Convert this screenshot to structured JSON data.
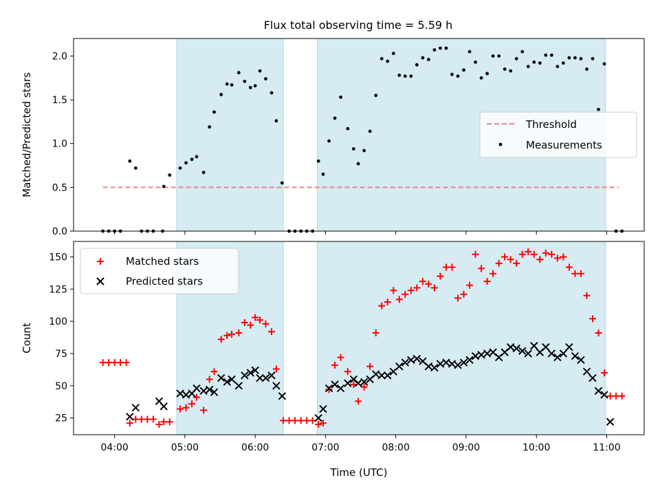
{
  "title": "Flux total observing time = 5.59 h",
  "colors": {
    "shade": "#add8e6",
    "threshold": "#f08080",
    "measurement": "#000000",
    "matched": "#ff0000",
    "predicted": "#000000"
  },
  "chart_data": [
    {
      "type": "scatter",
      "ylabel": "Matched/Predicted stars",
      "ylim": [
        0,
        2.2
      ],
      "yticks": [
        "0.0",
        "0.5",
        "1.0",
        "1.5",
        "2.0"
      ],
      "threshold": {
        "value": 0.5,
        "x_range": [
          "03:50",
          "11:10"
        ]
      },
      "observing_windows": [
        [
          "04:53",
          "06:24"
        ],
        [
          "06:53",
          "10:59"
        ]
      ],
      "legend": {
        "placement": "center-right",
        "items": [
          "Threshold",
          "Measurements"
        ]
      },
      "series": [
        {
          "name": "Measurements",
          "points": [
            [
              "03:50",
              0.0
            ],
            [
              "03:55",
              0.0
            ],
            [
              "04:00",
              0.0
            ],
            [
              "04:05",
              0.0
            ],
            [
              "04:13",
              0.8
            ],
            [
              "04:18",
              0.72
            ],
            [
              "04:23",
              0.0
            ],
            [
              "04:28",
              0.0
            ],
            [
              "04:33",
              0.0
            ],
            [
              "04:41",
              0.0
            ],
            [
              "04:42",
              0.51
            ],
            [
              "04:47",
              0.64
            ],
            [
              "04:56",
              0.72
            ],
            [
              "05:01",
              0.78
            ],
            [
              "05:06",
              0.82
            ],
            [
              "05:10",
              0.85
            ],
            [
              "05:16",
              0.67
            ],
            [
              "05:21",
              1.19
            ],
            [
              "05:25",
              1.36
            ],
            [
              "05:31",
              1.56
            ],
            [
              "05:36",
              1.68
            ],
            [
              "05:40",
              1.67
            ],
            [
              "05:46",
              1.81
            ],
            [
              "05:51",
              1.71
            ],
            [
              "05:56",
              1.64
            ],
            [
              "06:00",
              1.66
            ],
            [
              "06:04",
              1.83
            ],
            [
              "06:09",
              1.74
            ],
            [
              "06:14",
              1.58
            ],
            [
              "06:18",
              1.26
            ],
            [
              "06:23",
              0.55
            ],
            [
              "06:29",
              0.0
            ],
            [
              "06:34",
              0.0
            ],
            [
              "06:39",
              0.0
            ],
            [
              "06:44",
              0.0
            ],
            [
              "06:49",
              0.0
            ],
            [
              "06:54",
              0.8
            ],
            [
              "06:58",
              0.65
            ],
            [
              "07:03",
              1.03
            ],
            [
              "07:08",
              1.29
            ],
            [
              "07:13",
              1.53
            ],
            [
              "07:19",
              1.17
            ],
            [
              "07:24",
              0.94
            ],
            [
              "07:28",
              0.77
            ],
            [
              "07:33",
              0.92
            ],
            [
              "07:38",
              1.14
            ],
            [
              "07:43",
              1.55
            ],
            [
              "07:48",
              1.97
            ],
            [
              "07:53",
              1.94
            ],
            [
              "07:58",
              2.03
            ],
            [
              "08:03",
              1.78
            ],
            [
              "08:08",
              1.77
            ],
            [
              "08:13",
              1.77
            ],
            [
              "08:18",
              1.9
            ],
            [
              "08:23",
              1.98
            ],
            [
              "08:28",
              1.96
            ],
            [
              "08:33",
              2.07
            ],
            [
              "08:38",
              2.09
            ],
            [
              "08:43",
              2.09
            ],
            [
              "08:48",
              1.79
            ],
            [
              "08:53",
              1.77
            ],
            [
              "08:58",
              1.84
            ],
            [
              "09:03",
              2.05
            ],
            [
              "09:08",
              1.93
            ],
            [
              "09:13",
              1.75
            ],
            [
              "09:18",
              1.8
            ],
            [
              "09:23",
              2.0
            ],
            [
              "09:28",
              2.0
            ],
            [
              "09:33",
              1.85
            ],
            [
              "09:38",
              1.83
            ],
            [
              "09:43",
              1.97
            ],
            [
              "09:48",
              2.05
            ],
            [
              "09:53",
              1.88
            ],
            [
              "09:58",
              1.93
            ],
            [
              "10:03",
              1.92
            ],
            [
              "10:08",
              2.01
            ],
            [
              "10:13",
              2.01
            ],
            [
              "10:18",
              1.88
            ],
            [
              "10:23",
              1.92
            ],
            [
              "10:28",
              1.98
            ],
            [
              "10:33",
              1.98
            ],
            [
              "10:38",
              1.97
            ],
            [
              "10:43",
              1.85
            ],
            [
              "10:48",
              1.97
            ],
            [
              "10:53",
              1.39
            ],
            [
              "10:58",
              1.91
            ],
            [
              "11:08",
              0.0
            ],
            [
              "11:13",
              0.0
            ]
          ]
        }
      ]
    },
    {
      "type": "scatter",
      "xlabel": "Time (UTC)",
      "ylabel": "Count",
      "ylim": [
        12,
        162
      ],
      "yticks": [
        "25",
        "50",
        "75",
        "100",
        "125",
        "150"
      ],
      "xticks": [
        "04:00",
        "05:00",
        "06:00",
        "07:00",
        "08:00",
        "09:00",
        "10:00",
        "11:00"
      ],
      "xlim": [
        "03:25",
        "11:32"
      ],
      "observing_windows": [
        [
          "04:53",
          "06:24"
        ],
        [
          "06:53",
          "10:59"
        ]
      ],
      "legend": {
        "placement": "top-left",
        "items": [
          "Matched stars",
          "Predicted stars"
        ]
      },
      "series": [
        {
          "name": "Matched stars",
          "points": [
            [
              "03:50",
              68
            ],
            [
              "03:55",
              68
            ],
            [
              "04:00",
              68
            ],
            [
              "04:05",
              68
            ],
            [
              "04:10",
              68
            ],
            [
              "04:13",
              21
            ],
            [
              "04:18",
              24
            ],
            [
              "04:23",
              24
            ],
            [
              "04:28",
              24
            ],
            [
              "04:33",
              24
            ],
            [
              "04:38",
              20
            ],
            [
              "04:42",
              22
            ],
            [
              "04:47",
              22
            ],
            [
              "04:56",
              32
            ],
            [
              "05:01",
              33
            ],
            [
              "05:06",
              36
            ],
            [
              "05:10",
              41
            ],
            [
              "05:16",
              31
            ],
            [
              "05:21",
              55
            ],
            [
              "05:25",
              61
            ],
            [
              "05:31",
              86
            ],
            [
              "05:36",
              89
            ],
            [
              "05:40",
              90
            ],
            [
              "05:46",
              91
            ],
            [
              "05:51",
              99
            ],
            [
              "05:56",
              97
            ],
            [
              "06:00",
              103
            ],
            [
              "06:04",
              101
            ],
            [
              "06:09",
              98
            ],
            [
              "06:14",
              92
            ],
            [
              "06:18",
              63
            ],
            [
              "06:24",
              23
            ],
            [
              "06:29",
              23
            ],
            [
              "06:34",
              23
            ],
            [
              "06:39",
              23
            ],
            [
              "06:44",
              23
            ],
            [
              "06:49",
              23
            ],
            [
              "06:54",
              20
            ],
            [
              "06:58",
              21
            ],
            [
              "07:03",
              47
            ],
            [
              "07:08",
              66
            ],
            [
              "07:13",
              72
            ],
            [
              "07:19",
              61
            ],
            [
              "07:24",
              51
            ],
            [
              "07:28",
              38
            ],
            [
              "07:33",
              49
            ],
            [
              "07:38",
              65
            ],
            [
              "07:43",
              91
            ],
            [
              "07:48",
              112
            ],
            [
              "07:53",
              115
            ],
            [
              "07:58",
              124
            ],
            [
              "08:03",
              117
            ],
            [
              "08:08",
              121
            ],
            [
              "08:13",
              124
            ],
            [
              "08:18",
              126
            ],
            [
              "08:23",
              131
            ],
            [
              "08:28",
              129
            ],
            [
              "08:33",
              126
            ],
            [
              "08:38",
              135
            ],
            [
              "08:43",
              142
            ],
            [
              "08:48",
              142
            ],
            [
              "08:53",
              118
            ],
            [
              "08:58",
              121
            ],
            [
              "09:03",
              128
            ],
            [
              "09:08",
              152
            ],
            [
              "09:13",
              141
            ],
            [
              "09:18",
              131
            ],
            [
              "09:23",
              137
            ],
            [
              "09:28",
              145
            ],
            [
              "09:33",
              150
            ],
            [
              "09:38",
              148
            ],
            [
              "09:43",
              145
            ],
            [
              "09:48",
              152
            ],
            [
              "09:53",
              154
            ],
            [
              "09:58",
              152
            ],
            [
              "10:03",
              148
            ],
            [
              "10:08",
              153
            ],
            [
              "10:13",
              152
            ],
            [
              "10:18",
              149
            ],
            [
              "10:23",
              150
            ],
            [
              "10:28",
              142
            ],
            [
              "10:33",
              137
            ],
            [
              "10:38",
              137
            ],
            [
              "10:43",
              120
            ],
            [
              "10:48",
              102
            ],
            [
              "10:53",
              91
            ],
            [
              "10:58",
              60
            ],
            [
              "11:03",
              42
            ],
            [
              "11:08",
              42
            ],
            [
              "11:13",
              42
            ]
          ]
        },
        {
          "name": "Predicted stars",
          "points": [
            [
              "04:13",
              26
            ],
            [
              "04:18",
              33
            ],
            [
              "04:38",
              38
            ],
            [
              "04:42",
              34
            ],
            [
              "04:56",
              44
            ],
            [
              "05:01",
              43
            ],
            [
              "05:06",
              44
            ],
            [
              "05:10",
              48
            ],
            [
              "05:16",
              46
            ],
            [
              "05:21",
              47
            ],
            [
              "05:25",
              45
            ],
            [
              "05:31",
              56
            ],
            [
              "05:36",
              53
            ],
            [
              "05:40",
              55
            ],
            [
              "05:46",
              50
            ],
            [
              "05:51",
              58
            ],
            [
              "05:56",
              60
            ],
            [
              "06:00",
              62
            ],
            [
              "06:04",
              56
            ],
            [
              "06:09",
              56
            ],
            [
              "06:14",
              58
            ],
            [
              "06:18",
              50
            ],
            [
              "06:23",
              42
            ],
            [
              "06:54",
              25
            ],
            [
              "06:58",
              32
            ],
            [
              "07:03",
              48
            ],
            [
              "07:08",
              51
            ],
            [
              "07:13",
              48
            ],
            [
              "07:19",
              52
            ],
            [
              "07:24",
              55
            ],
            [
              "07:28",
              52
            ],
            [
              "07:33",
              53
            ],
            [
              "07:38",
              55
            ],
            [
              "07:43",
              59
            ],
            [
              "07:48",
              58
            ],
            [
              "07:53",
              58
            ],
            [
              "07:58",
              61
            ],
            [
              "08:03",
              65
            ],
            [
              "08:08",
              68
            ],
            [
              "08:13",
              70
            ],
            [
              "08:18",
              71
            ],
            [
              "08:23",
              69
            ],
            [
              "08:28",
              65
            ],
            [
              "08:33",
              64
            ],
            [
              "08:38",
              67
            ],
            [
              "08:43",
              68
            ],
            [
              "08:48",
              67
            ],
            [
              "08:53",
              66
            ],
            [
              "08:58",
              68
            ],
            [
              "09:03",
              70
            ],
            [
              "09:08",
              73
            ],
            [
              "09:13",
              74
            ],
            [
              "09:18",
              75
            ],
            [
              "09:23",
              76
            ],
            [
              "09:28",
              72
            ],
            [
              "09:33",
              76
            ],
            [
              "09:38",
              80
            ],
            [
              "09:43",
              79
            ],
            [
              "09:48",
              77
            ],
            [
              "09:53",
              75
            ],
            [
              "09:58",
              81
            ],
            [
              "10:03",
              76
            ],
            [
              "10:08",
              80
            ],
            [
              "10:13",
              75
            ],
            [
              "10:18",
              72
            ],
            [
              "10:23",
              75
            ],
            [
              "10:28",
              80
            ],
            [
              "10:33",
              73
            ],
            [
              "10:38",
              70
            ],
            [
              "10:43",
              61
            ],
            [
              "10:48",
              56
            ],
            [
              "10:53",
              46
            ],
            [
              "10:58",
              43
            ],
            [
              "11:03",
              22
            ]
          ]
        }
      ]
    }
  ]
}
